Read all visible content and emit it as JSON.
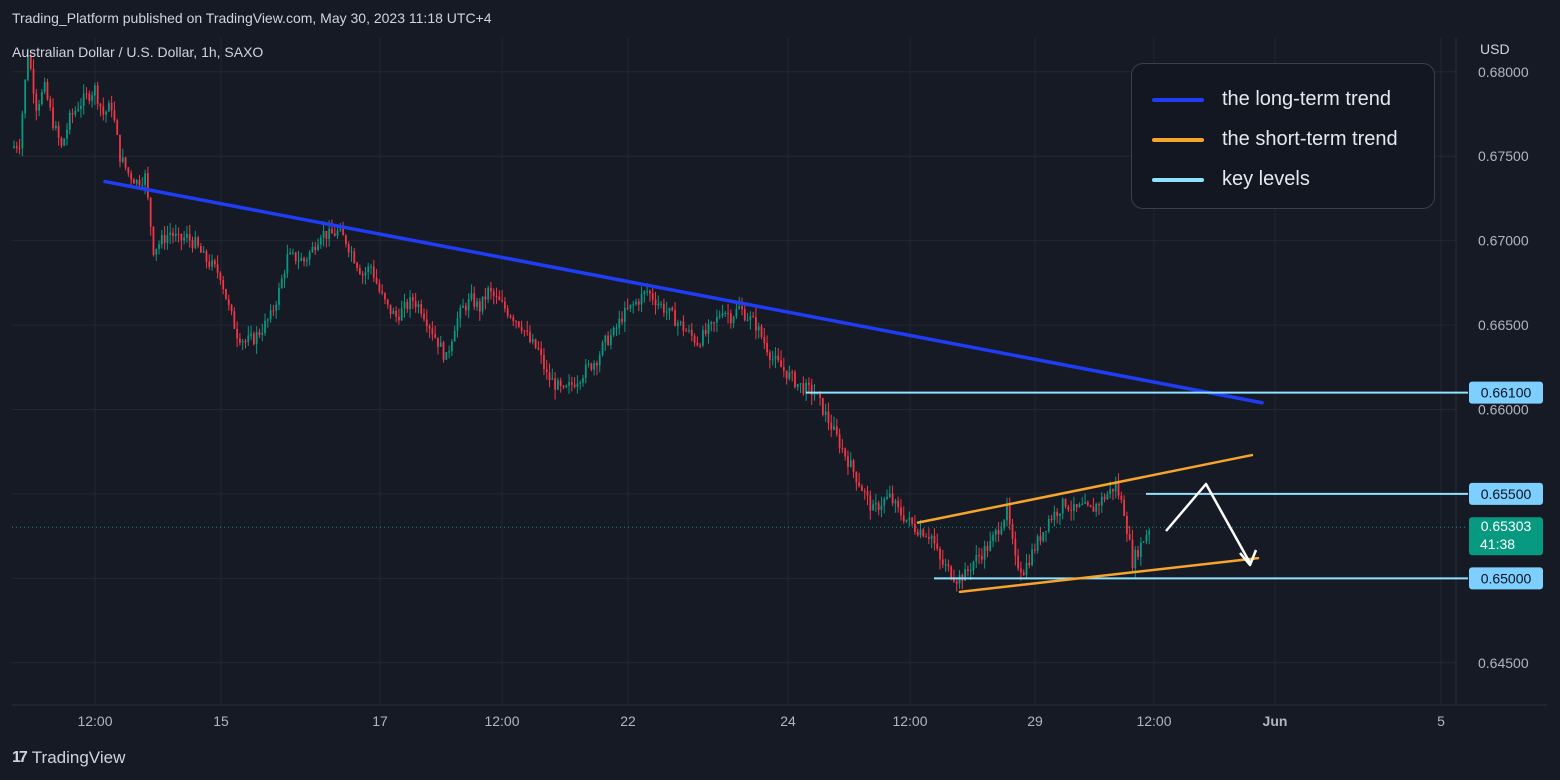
{
  "header": {
    "published": "Trading_Platform published on TradingView.com, May 30, 2023 11:18 UTC+4"
  },
  "symbol": "Australian Dollar / U.S. Dollar, 1h, SAXO",
  "currency": "USD",
  "footer": {
    "brand": "TradingView",
    "logo_glyph": "17"
  },
  "legend": {
    "items": [
      {
        "label": "the long-term trend",
        "color": "#1e3df5"
      },
      {
        "label": "the short-term trend",
        "color": "#f7a42c"
      },
      {
        "label": "key levels",
        "color": "#8fe3ff"
      }
    ]
  },
  "chart_data": {
    "type": "candlestick",
    "x_ticks": [
      "12:00",
      "15",
      "17",
      "12:00",
      "22",
      "24",
      "12:00",
      "29",
      "12:00",
      "Jun",
      "5"
    ],
    "y_ticks": [
      "0.68000",
      "0.67500",
      "0.67000",
      "0.66500",
      "0.66000",
      "0.65500",
      "0.65000",
      "0.64500"
    ],
    "ylim": [
      0.6425,
      0.682
    ],
    "current_price": {
      "value": "0.65303",
      "countdown": "41:38",
      "color": "#089981"
    },
    "key_levels": [
      {
        "value": 0.661,
        "label": "0.66100"
      },
      {
        "value": 0.655,
        "label": "0.65500"
      },
      {
        "value": 0.65,
        "label": "0.65000"
      }
    ],
    "colors": {
      "up": "#089981",
      "down": "#f23645",
      "long_trend": "#1e3df5",
      "short_trend": "#f7a42c",
      "key_level": "#8fe3ff",
      "arrow": "#ffffff"
    },
    "path_close": [
      0.6755,
      0.6758,
      0.6812,
      0.678,
      0.679,
      0.677,
      0.6755,
      0.6772,
      0.678,
      0.6785,
      0.679,
      0.6775,
      0.678,
      0.675,
      0.674,
      0.6735,
      0.6738,
      0.6695,
      0.67,
      0.6705,
      0.67,
      0.6702,
      0.6698,
      0.669,
      0.6685,
      0.668,
      0.666,
      0.6645,
      0.664,
      0.6642,
      0.6648,
      0.6655,
      0.667,
      0.669,
      0.669,
      0.6688,
      0.6695,
      0.6705,
      0.6703,
      0.6705,
      0.67,
      0.669,
      0.668,
      0.6685,
      0.667,
      0.666,
      0.6655,
      0.666,
      0.6665,
      0.666,
      0.665,
      0.664,
      0.663,
      0.665,
      0.666,
      0.6665,
      0.666,
      0.667,
      0.6665,
      0.666,
      0.6655,
      0.665,
      0.664,
      0.6635,
      0.662,
      0.6615,
      0.661,
      0.6615,
      0.662,
      0.6625,
      0.663,
      0.664,
      0.6645,
      0.6655,
      0.666,
      0.6665,
      0.667,
      0.6665,
      0.666,
      0.6655,
      0.665,
      0.6645,
      0.664,
      0.6645,
      0.665,
      0.666,
      0.6655,
      0.666,
      0.6655,
      0.665,
      0.664,
      0.663,
      0.6625,
      0.662,
      0.6615,
      0.6612,
      0.661,
      0.66,
      0.659,
      0.658,
      0.657,
      0.656,
      0.655,
      0.654,
      0.6545,
      0.6548,
      0.654,
      0.6535,
      0.653,
      0.6528,
      0.6525,
      0.651,
      0.6505,
      0.65,
      0.6502,
      0.651,
      0.6515,
      0.652,
      0.653,
      0.654,
      0.651,
      0.6505,
      0.6515,
      0.6525,
      0.6535,
      0.654,
      0.6545,
      0.654,
      0.6542,
      0.654,
      0.6545,
      0.655,
      0.6555,
      0.654,
      0.651,
      0.652,
      0.653
    ]
  }
}
